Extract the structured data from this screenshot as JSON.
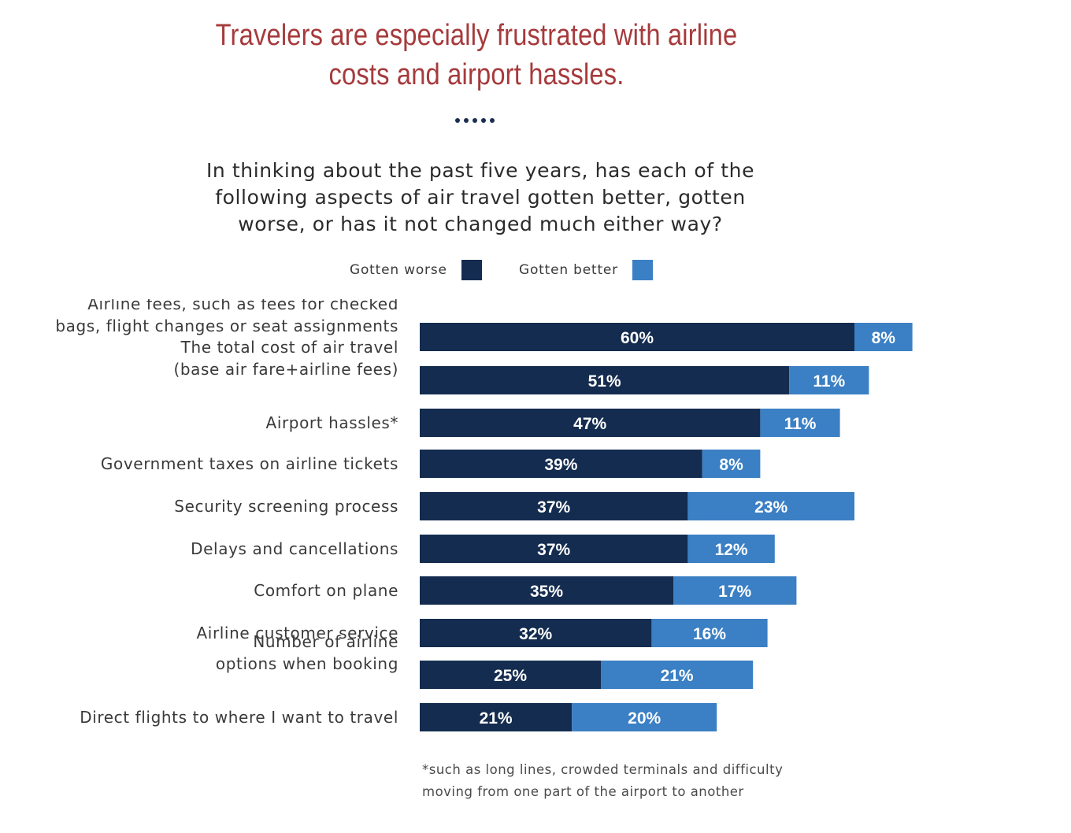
{
  "headline": {
    "line1": "Travelers are especially frustrated with airline",
    "line2": "costs and airport hassles."
  },
  "question": {
    "line1": "In thinking about the past five years, has each of the",
    "line2": "following aspects of air travel gotten better, gotten",
    "line3": "worse, or has it not changed much either way?"
  },
  "legend": {
    "worse_label": "Gotten worse",
    "better_label": "Gotten better"
  },
  "colors": {
    "worse": "#142c4f",
    "better": "#3b7fc4",
    "headline": "#a63a3c"
  },
  "footnote": {
    "line1": "*such as long lines, crowded terminals and difficulty",
    "line2": "moving from one part of the airport to another"
  },
  "chart_data": {
    "type": "bar",
    "orientation": "horizontal",
    "stacked": true,
    "legend_position": "top",
    "grid": false,
    "unit": "%",
    "categories": [
      [
        "Airline fees, such as fees for checked",
        "bags, flight changes or seat assignments"
      ],
      [
        "The total cost of air travel",
        "(base air fare+airline fees)"
      ],
      [
        "Airport hassles*"
      ],
      [
        "Government taxes on airline tickets"
      ],
      [
        "Security screening process"
      ],
      [
        "Delays and cancellations"
      ],
      [
        "Comfort on plane"
      ],
      [
        "Airline customer service"
      ],
      [
        "Number of airline",
        "options when booking"
      ],
      [
        "Direct flights to where I want to travel"
      ]
    ],
    "series": [
      {
        "name": "Gotten worse",
        "values": [
          60,
          51,
          47,
          39,
          37,
          37,
          35,
          32,
          25,
          21
        ]
      },
      {
        "name": "Gotten better",
        "values": [
          8,
          11,
          11,
          8,
          23,
          12,
          17,
          16,
          21,
          20
        ]
      }
    ],
    "value_labels": {
      "worse": [
        "60%",
        "51%",
        "47%",
        "39%",
        "37%",
        "37%",
        "35%",
        "32%",
        "25%",
        "21%"
      ],
      "better": [
        "8%",
        "11%",
        "11%",
        "8%",
        "23%",
        "12%",
        "17%",
        "16%",
        "21%",
        "20%"
      ]
    },
    "xlim": [
      0,
      68
    ]
  }
}
